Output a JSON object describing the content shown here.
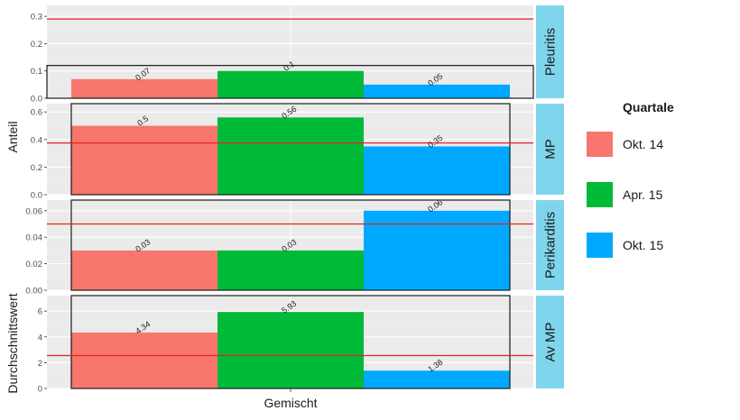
{
  "chart_data": {
    "type": "bar",
    "categories": [
      "Gemischt"
    ],
    "xlabel": "Gemischt",
    "ylabel_top": "Anteil",
    "ylabel_bottom": "Durchschnittswert",
    "legend": {
      "title": "Quartale",
      "placement": "right",
      "entries": [
        {
          "label": "Okt. 14",
          "color": "#F8766D"
        },
        {
          "label": "Apr. 15",
          "color": "#00BA38"
        },
        {
          "label": "Okt. 15",
          "color": "#00A9FF"
        }
      ]
    },
    "grid": true,
    "reference_line_color": "#E8231E",
    "strip_color": "#7FD6EC",
    "panels": [
      {
        "label": "Pleuritis",
        "ylim": [
          0,
          0.34
        ],
        "ticks": [
          "0.0",
          "0.1",
          "0.2",
          "0.3"
        ],
        "tick_values": [
          0,
          0.1,
          0.2,
          0.3
        ],
        "reference_line": 0.29,
        "bordered": false,
        "values": [
          0.07,
          0.1,
          0.05
        ],
        "labels": [
          "0.07",
          "0.1",
          "0.05"
        ],
        "box_top": 0.12
      },
      {
        "label": "MP",
        "ylim": [
          0,
          0.66
        ],
        "ticks": [
          "0.0",
          "0.2",
          "0.4",
          "0.6"
        ],
        "tick_values": [
          0,
          0.2,
          0.4,
          0.6
        ],
        "reference_line": 0.375,
        "bordered": true,
        "values": [
          0.5,
          0.56,
          0.35
        ],
        "labels": [
          "0.5",
          "0.56",
          "0.35"
        ]
      },
      {
        "label": "Perikarditis",
        "ylim": [
          0,
          0.068
        ],
        "ticks": [
          "0.00",
          "0.02",
          "0.04",
          "0.06"
        ],
        "tick_values": [
          0,
          0.02,
          0.04,
          0.06
        ],
        "reference_line": 0.05,
        "bordered": true,
        "values": [
          0.03,
          0.03,
          0.06
        ],
        "labels": [
          "0.03",
          "0.03",
          "0.06"
        ]
      },
      {
        "label": "Av MP",
        "ylim": [
          0,
          7.2
        ],
        "ticks": [
          "0",
          "2",
          "4",
          "6"
        ],
        "tick_values": [
          0,
          2,
          4,
          6
        ],
        "reference_line": 2.55,
        "bordered": true,
        "values": [
          4.34,
          5.93,
          1.38
        ],
        "labels": [
          "4.34",
          "5.93",
          "1.38"
        ]
      }
    ]
  }
}
